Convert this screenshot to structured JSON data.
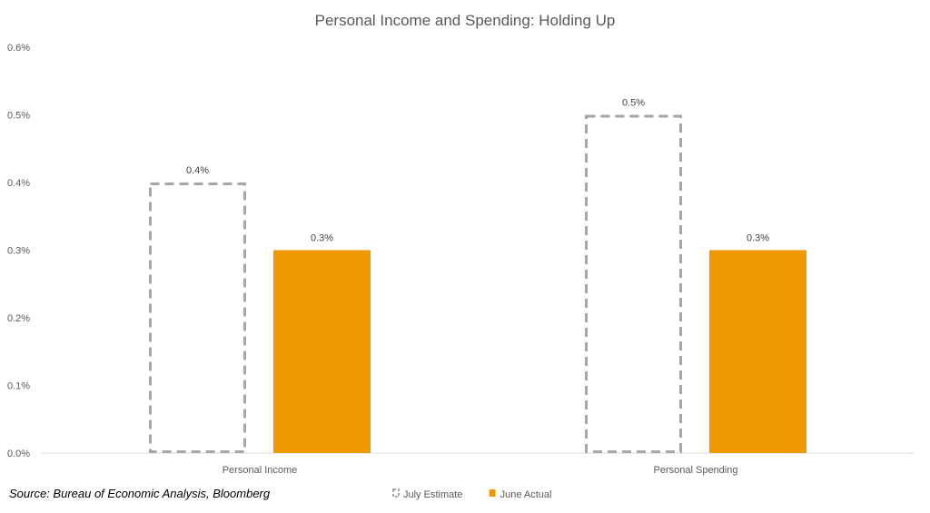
{
  "chart_data": {
    "type": "bar",
    "title": "Personal Income and Spending: Holding Up",
    "xlabel": "",
    "ylabel": "",
    "categories": [
      "Personal Income",
      "Personal Spending"
    ],
    "series": [
      {
        "name": "July Estimate",
        "values": [
          0.4,
          0.5
        ],
        "data_labels": [
          "0.4%",
          "0.5%"
        ],
        "style": "dashed-outline",
        "color": "#A6A6A6"
      },
      {
        "name": "June Actual",
        "values": [
          0.3,
          0.3
        ],
        "data_labels": [
          "0.3%",
          "0.3%"
        ],
        "style": "filled",
        "color": "#F09800"
      }
    ],
    "ylim": [
      0,
      0.6
    ],
    "yticks": [
      0,
      0.1,
      0.2,
      0.3,
      0.4,
      0.5,
      0.6
    ],
    "ytick_labels": [
      "0.0%",
      "0.1%",
      "0.2%",
      "0.3%",
      "0.4%",
      "0.5%",
      "0.6%"
    ],
    "grid": false,
    "legend_position": "bottom-center"
  },
  "source_note": "Source: Bureau of Economic Analysis, Bloomberg",
  "colors": {
    "axis": "#D9D9D9",
    "text": "#595959"
  }
}
